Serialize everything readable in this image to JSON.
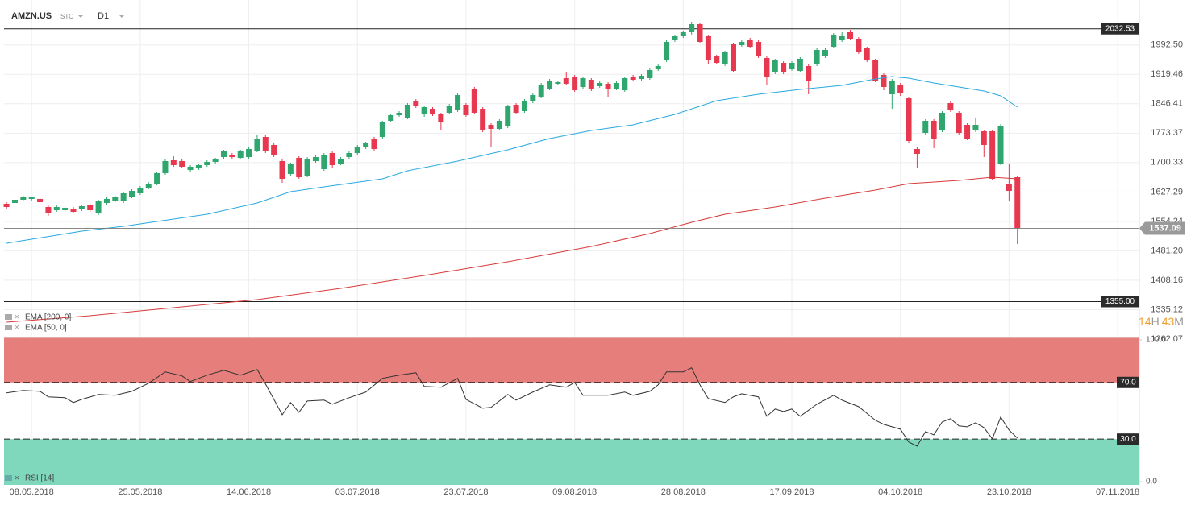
{
  "header": {
    "symbol": "AMZN.US",
    "kind": "STC",
    "interval": "D1"
  },
  "timer": {
    "hours": 14,
    "hours_unit": "H",
    "minutes": 43,
    "minutes_unit": "M"
  },
  "chart_data": [
    {
      "type": "candlestick",
      "up_color": "#2ea66e",
      "down_color": "#e8384f",
      "xlim": [
        -0.3,
        135.6
      ],
      "ylim": [
        1256,
        2084
      ],
      "grid": true,
      "xticks": [
        {
          "value": 3,
          "label": "08.05.2018"
        },
        {
          "value": 16,
          "label": "25.05.2018"
        },
        {
          "value": 29,
          "label": "14.06.2018"
        },
        {
          "value": 42,
          "label": "03.07.2018"
        },
        {
          "value": 55,
          "label": "23.07.2018"
        },
        {
          "value": 68,
          "label": "09.08.2018"
        },
        {
          "value": 81,
          "label": "28.08.2018"
        },
        {
          "value": 94,
          "label": "17.09.2018"
        },
        {
          "value": 107,
          "label": "04.10.2018"
        },
        {
          "value": 120,
          "label": "23.10.2018"
        },
        {
          "value": 133,
          "label": "07.11.2018"
        }
      ],
      "yticks": [
        {
          "value": 1992.5,
          "label": "1992.50"
        },
        1919.46,
        1846.41,
        1773.37,
        1700.33,
        1627.29,
        1554.24,
        {
          "value": 1481.2,
          "label": "1481.20"
        },
        1408.16,
        1335.12,
        1262.07
      ],
      "hlines": [
        2032.53,
        {
          "value": 1355,
          "label": "1355.00"
        }
      ],
      "ohlc": [
        [
          1598,
          1602,
          1586,
          1590
        ],
        [
          1600,
          1612,
          1596,
          1608
        ],
        [
          1608,
          1618,
          1604,
          1614
        ],
        [
          1610,
          1616,
          1606,
          1614
        ],
        [
          1610,
          1614,
          1598,
          1602
        ],
        [
          1590,
          1594,
          1568,
          1574
        ],
        [
          1582,
          1594,
          1578,
          1590
        ],
        [
          1582,
          1592,
          1578,
          1588
        ],
        [
          1586,
          1590,
          1574,
          1578
        ],
        [
          1584,
          1596,
          1580,
          1592
        ],
        [
          1594,
          1598,
          1578,
          1582
        ],
        [
          1574,
          1608,
          1570,
          1604
        ],
        [
          1600,
          1614,
          1596,
          1610
        ],
        [
          1606,
          1618,
          1602,
          1614
        ],
        [
          1604,
          1628,
          1600,
          1624
        ],
        [
          1616,
          1634,
          1612,
          1630
        ],
        [
          1624,
          1642,
          1620,
          1638
        ],
        [
          1638,
          1652,
          1634,
          1648
        ],
        [
          1648,
          1678,
          1644,
          1674
        ],
        [
          1674,
          1708,
          1670,
          1704
        ],
        [
          1706,
          1716,
          1690,
          1694
        ],
        [
          1704,
          1708,
          1686,
          1690
        ],
        [
          1682,
          1694,
          1678,
          1690
        ],
        [
          1686,
          1698,
          1682,
          1694
        ],
        [
          1694,
          1706,
          1690,
          1702
        ],
        [
          1702,
          1712,
          1698,
          1708
        ],
        [
          1714,
          1732,
          1710,
          1728
        ],
        [
          1720,
          1724,
          1710,
          1714
        ],
        [
          1712,
          1732,
          1708,
          1728
        ],
        [
          1714,
          1738,
          1710,
          1734
        ],
        [
          1730,
          1768,
          1726,
          1760
        ],
        [
          1764,
          1768,
          1724,
          1728
        ],
        [
          1744,
          1748,
          1714,
          1718
        ],
        [
          1704,
          1708,
          1650,
          1660
        ],
        [
          1672,
          1700,
          1668,
          1696
        ],
        [
          1712,
          1716,
          1660,
          1664
        ],
        [
          1668,
          1714,
          1664,
          1710
        ],
        [
          1704,
          1718,
          1700,
          1714
        ],
        [
          1684,
          1724,
          1680,
          1720
        ],
        [
          1724,
          1728,
          1688,
          1694
        ],
        [
          1698,
          1714,
          1694,
          1710
        ],
        [
          1714,
          1728,
          1710,
          1724
        ],
        [
          1724,
          1744,
          1720,
          1740
        ],
        [
          1738,
          1752,
          1734,
          1748
        ],
        [
          1760,
          1764,
          1730,
          1734
        ],
        [
          1764,
          1804,
          1760,
          1800
        ],
        [
          1804,
          1822,
          1800,
          1818
        ],
        [
          1818,
          1828,
          1814,
          1824
        ],
        [
          1812,
          1848,
          1808,
          1844
        ],
        [
          1854,
          1858,
          1836,
          1840
        ],
        [
          1820,
          1842,
          1814,
          1838
        ],
        [
          1834,
          1838,
          1816,
          1820
        ],
        [
          1820,
          1824,
          1780,
          1800
        ],
        [
          1824,
          1846,
          1820,
          1842
        ],
        [
          1830,
          1872,
          1826,
          1868
        ],
        [
          1844,
          1848,
          1814,
          1818
        ],
        [
          1884,
          1888,
          1820,
          1824
        ],
        [
          1834,
          1838,
          1776,
          1780
        ],
        [
          1794,
          1798,
          1740,
          1784
        ],
        [
          1784,
          1808,
          1780,
          1804
        ],
        [
          1790,
          1844,
          1786,
          1840
        ],
        [
          1844,
          1848,
          1820,
          1824
        ],
        [
          1828,
          1858,
          1824,
          1854
        ],
        [
          1852,
          1872,
          1848,
          1868
        ],
        [
          1864,
          1898,
          1860,
          1894
        ],
        [
          1884,
          1908,
          1880,
          1904
        ],
        [
          1896,
          1904,
          1892,
          1900
        ],
        [
          1910,
          1926,
          1892,
          1896
        ],
        [
          1914,
          1918,
          1876,
          1880
        ],
        [
          1888,
          1914,
          1884,
          1910
        ],
        [
          1906,
          1910,
          1878,
          1884
        ],
        [
          1890,
          1902,
          1886,
          1898
        ],
        [
          1896,
          1900,
          1864,
          1884
        ],
        [
          1884,
          1902,
          1880,
          1898
        ],
        [
          1880,
          1914,
          1876,
          1910
        ],
        [
          1914,
          1918,
          1902,
          1906
        ],
        [
          1908,
          1920,
          1904,
          1916
        ],
        [
          1910,
          1934,
          1906,
          1930
        ],
        [
          1932,
          1944,
          1928,
          1940
        ],
        [
          1954,
          2004,
          1950,
          2000
        ],
        [
          2004,
          2018,
          2000,
          2014
        ],
        [
          2014,
          2028,
          2010,
          2024
        ],
        [
          2024,
          2050,
          2018,
          2044
        ],
        [
          2044,
          2048,
          1996,
          2000
        ],
        [
          2014,
          2018,
          1946,
          1954
        ],
        [
          1964,
          1968,
          1944,
          1948
        ],
        [
          1944,
          1978,
          1940,
          1974
        ],
        [
          1994,
          1998,
          1924,
          1928
        ],
        [
          1992,
          2004,
          1988,
          2000
        ],
        [
          2004,
          2010,
          1984,
          1988
        ],
        [
          2000,
          2004,
          1960,
          1964
        ],
        [
          1960,
          1964,
          1894,
          1914
        ],
        [
          1924,
          1958,
          1920,
          1954
        ],
        [
          1948,
          1952,
          1920,
          1924
        ],
        [
          1932,
          1952,
          1928,
          1948
        ],
        [
          1928,
          1962,
          1924,
          1958
        ],
        [
          1940,
          1944,
          1870,
          1904
        ],
        [
          1944,
          1984,
          1940,
          1980
        ],
        [
          1964,
          1984,
          1960,
          1980
        ],
        [
          1988,
          2022,
          1984,
          2018
        ],
        [
          2004,
          2024,
          2000,
          2014
        ],
        [
          2024,
          2030,
          2004,
          2008
        ],
        [
          2008,
          2012,
          1970,
          1974
        ],
        [
          1984,
          1988,
          1950,
          1954
        ],
        [
          1954,
          1958,
          1900,
          1904
        ],
        [
          1918,
          1922,
          1880,
          1888
        ],
        [
          1870,
          1908,
          1834,
          1904
        ],
        [
          1894,
          1898,
          1866,
          1874
        ],
        [
          1860,
          1864,
          1750,
          1754
        ],
        [
          1734,
          1740,
          1688,
          1722
        ],
        [
          1774,
          1808,
          1770,
          1804
        ],
        [
          1804,
          1808,
          1736,
          1760
        ],
        [
          1780,
          1828,
          1776,
          1824
        ],
        [
          1848,
          1852,
          1826,
          1830
        ],
        [
          1824,
          1828,
          1770,
          1774
        ],
        [
          1794,
          1798,
          1756,
          1760
        ],
        [
          1780,
          1810,
          1776,
          1794
        ],
        [
          1778,
          1782,
          1714,
          1744
        ],
        [
          1778,
          1782,
          1656,
          1660
        ],
        [
          1698,
          1796,
          1694,
          1790
        ],
        [
          1648,
          1698,
          1606,
          1630
        ],
        [
          1664,
          1666,
          1498,
          1537.09
        ]
      ],
      "series": [
        {
          "name": "EMA [200, 0]",
          "color": "#d83a3a",
          "x": [
            0,
            10,
            20,
            30,
            40,
            50,
            60,
            70,
            77,
            82,
            86,
            92,
            98,
            104,
            108,
            114,
            118,
            121
          ],
          "values": [
            1304,
            1320,
            1340,
            1360,
            1388,
            1420,
            1454,
            1492,
            1524,
            1552,
            1572,
            1590,
            1612,
            1632,
            1648,
            1656,
            1664,
            1660
          ]
        },
        {
          "name": "EMA [50, 0]",
          "color": "#29a8e0",
          "x": [
            0,
            9,
            14,
            24,
            30,
            34,
            38,
            45,
            48,
            54,
            60,
            65,
            70,
            75,
            80,
            85,
            90,
            95,
            100,
            104,
            106,
            108,
            111,
            114,
            117,
            119,
            121
          ],
          "values": [
            1500,
            1530,
            1542,
            1572,
            1600,
            1628,
            1640,
            1660,
            1680,
            1704,
            1732,
            1760,
            1780,
            1794,
            1820,
            1854,
            1870,
            1882,
            1892,
            1908,
            1914,
            1910,
            1898,
            1888,
            1878,
            1866,
            1838
          ]
        }
      ]
    },
    {
      "type": "line",
      "xlim": [
        -0.3,
        135.6
      ],
      "ylim": [
        -2.3,
        101.7
      ],
      "yticks": [
        {
          "value": 100,
          "label": "100.0"
        },
        {
          "value": 0,
          "label": "0.0"
        }
      ],
      "levels": [
        {
          "value": 70,
          "label": "70.0",
          "color": "#e67f7b"
        },
        {
          "value": 30,
          "label": "30.0",
          "color": "#7fd8bb"
        }
      ],
      "series": [
        {
          "name": "RSI [14]",
          "color": "#333333",
          "x": [
            0,
            2,
            4,
            5,
            7,
            8,
            9,
            11,
            13,
            15,
            17,
            19,
            21,
            22,
            24,
            26,
            28,
            30,
            31,
            33,
            34,
            35,
            36,
            38,
            39,
            41,
            43,
            45,
            47,
            49,
            50,
            52,
            54,
            55,
            57,
            58,
            60,
            61,
            63,
            65,
            67,
            68,
            69,
            72,
            74,
            75,
            77,
            78,
            79,
            81,
            82,
            83,
            84,
            86,
            87,
            88,
            90,
            91,
            92,
            93,
            94,
            95,
            97,
            99,
            100,
            102,
            104,
            105,
            107,
            108,
            109,
            110,
            111,
            112,
            113,
            114,
            115,
            116,
            117,
            118,
            119,
            120,
            121
          ],
          "values": [
            62.6,
            64.3,
            63.7,
            59.8,
            59.2,
            55.8,
            58,
            61.5,
            60.9,
            63.7,
            69.4,
            77.4,
            74.6,
            70.6,
            75.1,
            78.5,
            75.1,
            79.1,
            68.9,
            47.2,
            55.8,
            48.9,
            56.9,
            57.5,
            54.6,
            59.2,
            63.2,
            72.9,
            75.1,
            76.8,
            67.2,
            66.6,
            72.9,
            58,
            51.8,
            52.4,
            61.5,
            57.5,
            63.2,
            68.3,
            66.6,
            70,
            60.9,
            60.9,
            63.2,
            60.9,
            63.7,
            68.3,
            77.4,
            77.4,
            80.3,
            68.3,
            58.6,
            55.8,
            59.8,
            62,
            59.8,
            46.1,
            51.2,
            49.5,
            51.2,
            46.1,
            54.6,
            60.9,
            57.5,
            52.9,
            43.3,
            40.4,
            37,
            27.9,
            25,
            35.3,
            33,
            42.1,
            44.4,
            39.3,
            38.7,
            41.5,
            38.1,
            30.2,
            45.5,
            36.4,
            30.7
          ]
        }
      ]
    }
  ]
}
